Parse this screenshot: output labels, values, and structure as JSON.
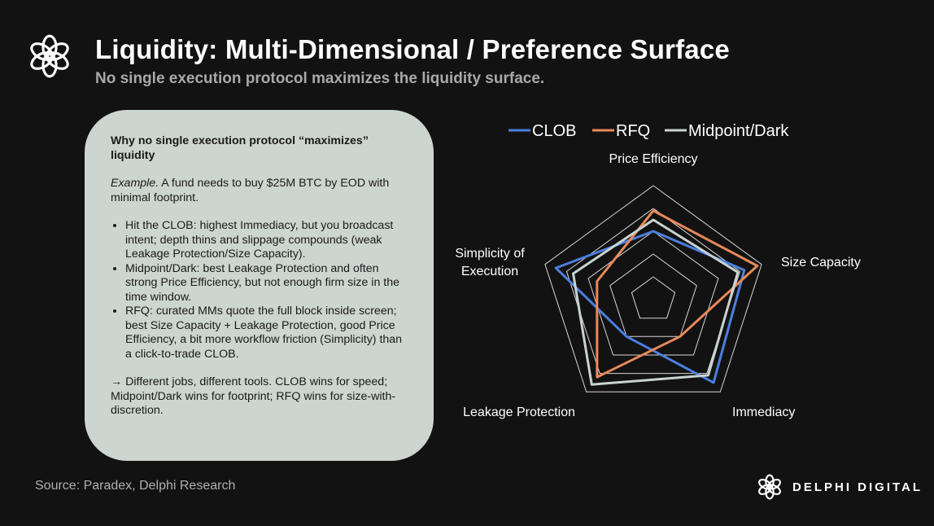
{
  "header": {
    "title": "Liquidity: Multi-Dimensional / Preference Surface",
    "subtitle": "No single execution protocol maximizes the liquidity surface."
  },
  "card": {
    "heading": "Why no single execution protocol “maximizes” liquidity",
    "example_label": "Example.",
    "example_text": " A fund needs to buy $25M BTC by EOD with minimal footprint.",
    "bullets": [
      "Hit the CLOB: highest Immediacy, but you broadcast intent; depth thins and slippage compounds (weak Leakage Protection/Size Capacity).",
      "Midpoint/Dark: best Leakage Protection and often strong Price Efficiency, but not enough firm size in the time window.",
      "RFQ: curated MMs quote the full block inside screen; best Size Capacity + Leakage Protection, good Price Efficiency, a bit more workflow friction (Simplicity) than a click-to-trade CLOB."
    ],
    "conclusion": "→ Different jobs, different tools. CLOB wins for speed; Midpoint/Dark wins for footprint; RFQ wins for size-with-discretion."
  },
  "chart_data": {
    "type": "radar",
    "axes": [
      "Price Efficiency",
      "Size Capacity",
      "Immediacy",
      "Leakage Protection",
      "Simplicity of Execution"
    ],
    "range": [
      0,
      5
    ],
    "rings": 5,
    "legend_position": "top",
    "series": [
      {
        "name": "CLOB",
        "color": "#4c7fe0",
        "values": [
          3.0,
          4.2,
          4.5,
          2.0,
          4.5
        ]
      },
      {
        "name": "RFQ",
        "color": "#e8895a",
        "values": [
          3.9,
          4.8,
          2.0,
          4.2,
          2.6
        ]
      },
      {
        "name": "Midpoint/Dark",
        "color": "#c9d3cf",
        "values": [
          3.5,
          3.9,
          4.1,
          4.6,
          3.7
        ]
      }
    ]
  },
  "footer": {
    "source": "Source: Paradex, Delphi Research",
    "brand": "DELPHI DIGITAL"
  },
  "colors": {
    "background": "#121212",
    "card": "#cdd5d0",
    "grid": "#d8d8d8"
  },
  "icons": {
    "logo": "delphi-knot-icon"
  }
}
